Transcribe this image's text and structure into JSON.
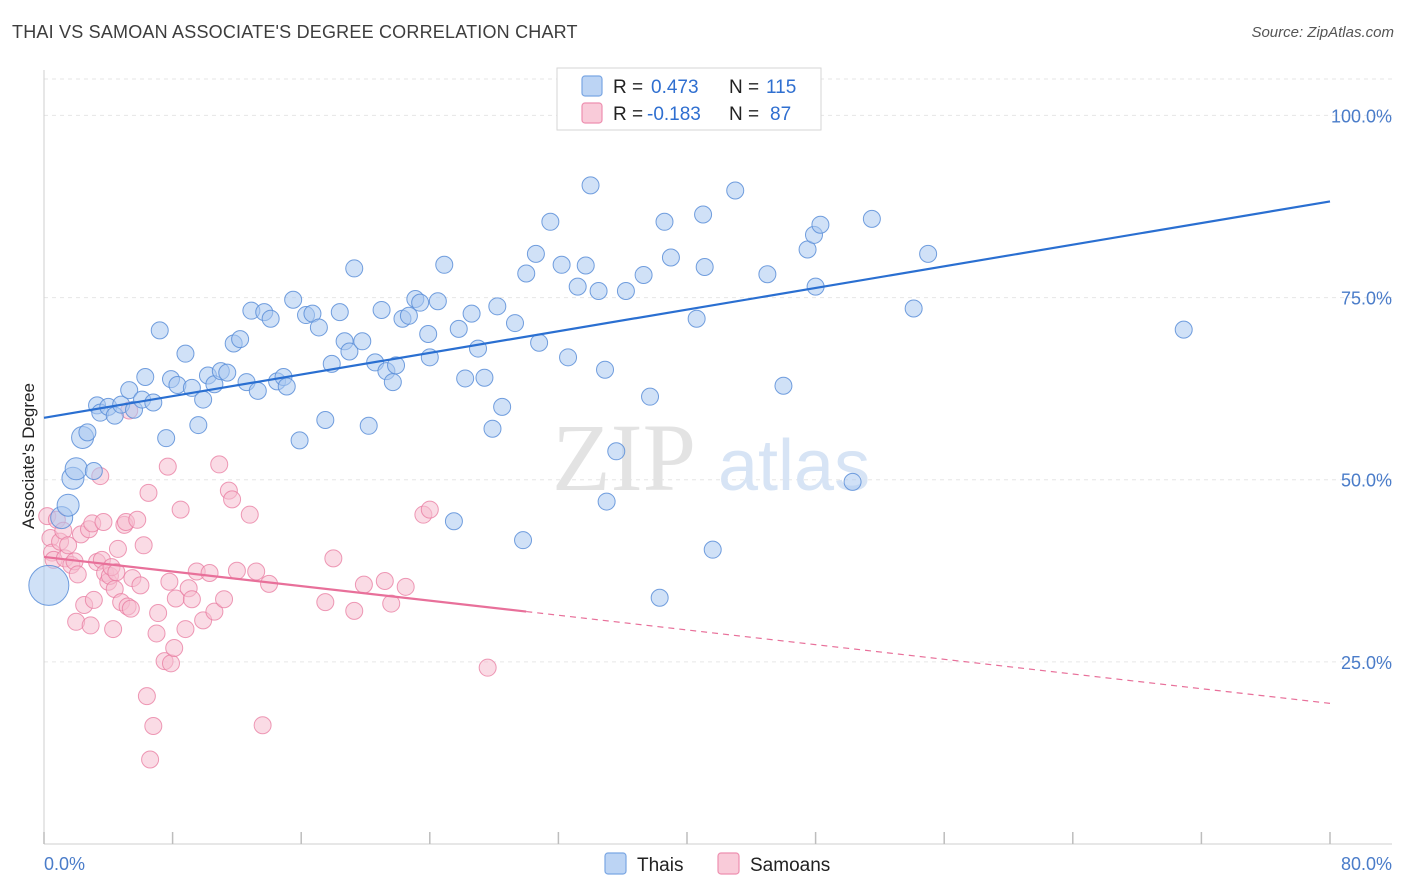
{
  "header": {
    "title": "THAI VS SAMOAN ASSOCIATE'S DEGREE CORRELATION CHART",
    "source": "Source: ZipAtlas.com"
  },
  "watermark": {
    "zip": "ZIP",
    "atlas": "atlas"
  },
  "legend": {
    "rows": [
      {
        "r_label": "R =",
        "r_value": "0.473",
        "n_label": "N =",
        "n_value": "115",
        "color": "#8fb7ec"
      },
      {
        "r_label": "R =",
        "r_value": "-0.183",
        "n_label": "N =",
        "n_value": "87",
        "color": "#f4a8c0"
      }
    ]
  },
  "chart_data": {
    "type": "scatter",
    "ylabel": "Associate's Degree",
    "xlim": [
      0,
      80
    ],
    "ylim": [
      0,
      105
    ],
    "x_tick_labels": [
      "0.0%",
      "80.0%"
    ],
    "y_ticks": [
      25,
      50,
      75,
      100
    ],
    "y_tick_labels": [
      "25.0%",
      "50.0%",
      "75.0%",
      "100.0%"
    ],
    "grid": true,
    "legend_position": "top-center",
    "bottom_legend": [
      "Thais",
      "Samoans"
    ],
    "colors": {
      "thai": "#5b8ed8",
      "thai_fill": "#a9c8f0",
      "samoan": "#e8799f",
      "samoan_fill": "#f6bdd0",
      "thai_line": "#2a6fd1",
      "samoan_line": "#e8709a"
    },
    "series": [
      {
        "name": "Thais",
        "trend": {
          "x0": 0,
          "y0": 58.5,
          "x1": 80,
          "y1": 88.2
        },
        "points": [
          [
            0.3,
            35.5
          ],
          [
            1.1,
            44.8
          ],
          [
            1.5,
            46.5
          ],
          [
            1.8,
            50.2
          ],
          [
            2.0,
            51.5
          ],
          [
            2.4,
            55.8
          ],
          [
            2.7,
            56.5
          ],
          [
            3.1,
            51.2
          ],
          [
            3.3,
            60.2
          ],
          [
            3.5,
            59.2
          ],
          [
            4.0,
            60.0
          ],
          [
            4.4,
            58.8
          ],
          [
            4.8,
            60.3
          ],
          [
            5.3,
            62.3
          ],
          [
            5.6,
            59.6
          ],
          [
            6.1,
            61.0
          ],
          [
            6.3,
            64.1
          ],
          [
            6.8,
            60.6
          ],
          [
            7.2,
            70.5
          ],
          [
            7.6,
            55.7
          ],
          [
            7.9,
            63.8
          ],
          [
            8.3,
            63.0
          ],
          [
            8.8,
            67.3
          ],
          [
            9.2,
            62.6
          ],
          [
            9.6,
            57.5
          ],
          [
            9.9,
            61.0
          ],
          [
            10.2,
            64.3
          ],
          [
            10.6,
            63.1
          ],
          [
            11.0,
            64.9
          ],
          [
            11.4,
            64.7
          ],
          [
            11.8,
            68.7
          ],
          [
            12.2,
            69.3
          ],
          [
            12.6,
            63.4
          ],
          [
            12.9,
            73.2
          ],
          [
            13.3,
            62.2
          ],
          [
            13.7,
            73.0
          ],
          [
            14.1,
            72.1
          ],
          [
            14.5,
            63.5
          ],
          [
            14.9,
            64.1
          ],
          [
            15.1,
            62.8
          ],
          [
            15.5,
            74.7
          ],
          [
            15.9,
            55.4
          ],
          [
            16.3,
            72.6
          ],
          [
            16.7,
            72.8
          ],
          [
            17.1,
            70.9
          ],
          [
            17.5,
            58.2
          ],
          [
            17.9,
            65.9
          ],
          [
            18.4,
            73.0
          ],
          [
            18.7,
            69.0
          ],
          [
            19.0,
            67.6
          ],
          [
            19.3,
            79.0
          ],
          [
            19.8,
            69.0
          ],
          [
            20.2,
            57.4
          ],
          [
            20.6,
            66.1
          ],
          [
            21.0,
            73.3
          ],
          [
            21.3,
            64.9
          ],
          [
            21.7,
            63.4
          ],
          [
            21.9,
            65.7
          ],
          [
            22.3,
            72.1
          ],
          [
            22.7,
            72.5
          ],
          [
            23.1,
            74.8
          ],
          [
            23.4,
            74.3
          ],
          [
            23.9,
            70.0
          ],
          [
            24.0,
            66.8
          ],
          [
            24.5,
            74.5
          ],
          [
            24.9,
            79.5
          ],
          [
            25.5,
            44.3
          ],
          [
            25.8,
            70.7
          ],
          [
            26.2,
            63.9
          ],
          [
            26.6,
            72.8
          ],
          [
            27.0,
            68.0
          ],
          [
            27.4,
            64.0
          ],
          [
            27.9,
            57.0
          ],
          [
            28.2,
            73.8
          ],
          [
            28.5,
            60.0
          ],
          [
            29.3,
            71.5
          ],
          [
            29.8,
            41.7
          ],
          [
            30.0,
            78.3
          ],
          [
            30.6,
            81.0
          ],
          [
            30.8,
            68.8
          ],
          [
            31.5,
            85.4
          ],
          [
            32.2,
            79.5
          ],
          [
            32.6,
            66.8
          ],
          [
            33.2,
            76.5
          ],
          [
            33.7,
            79.4
          ],
          [
            34.0,
            90.4
          ],
          [
            34.5,
            75.9
          ],
          [
            34.9,
            65.1
          ],
          [
            35.0,
            47.0
          ],
          [
            35.6,
            53.9
          ],
          [
            36.2,
            75.9
          ],
          [
            37.3,
            78.1
          ],
          [
            37.7,
            61.4
          ],
          [
            38.3,
            33.8
          ],
          [
            38.6,
            85.4
          ],
          [
            39.0,
            80.5
          ],
          [
            40.6,
            72.1
          ],
          [
            41.0,
            86.4
          ],
          [
            41.1,
            79.2
          ],
          [
            41.6,
            40.4
          ],
          [
            43.0,
            89.7
          ],
          [
            45.0,
            78.2
          ],
          [
            46.0,
            62.9
          ],
          [
            47.5,
            81.6
          ],
          [
            47.9,
            83.6
          ],
          [
            48.0,
            76.5
          ],
          [
            48.3,
            85.0
          ],
          [
            50.3,
            49.7
          ],
          [
            51.5,
            85.8
          ],
          [
            54.1,
            73.5
          ],
          [
            55.0,
            81.0
          ],
          [
            70.9,
            70.6
          ]
        ]
      },
      {
        "name": "Samoans",
        "trend": {
          "x0": 0,
          "y0": 39.4,
          "x1": 30,
          "y1": 31.9
        },
        "trend_dashed": {
          "x0": 30,
          "y0": 31.9,
          "x1": 80,
          "y1": 19.3
        },
        "points": [
          [
            0.2,
            45.0
          ],
          [
            0.4,
            42.0
          ],
          [
            0.5,
            40.0
          ],
          [
            0.6,
            39.0
          ],
          [
            0.8,
            44.5
          ],
          [
            1.0,
            41.5
          ],
          [
            1.2,
            43.0
          ],
          [
            1.3,
            39.2
          ],
          [
            1.5,
            41.0
          ],
          [
            1.7,
            38.3
          ],
          [
            1.9,
            38.8
          ],
          [
            2.1,
            37.0
          ],
          [
            2.3,
            42.5
          ],
          [
            2.5,
            32.8
          ],
          [
            2.0,
            30.5
          ],
          [
            2.8,
            43.2
          ],
          [
            2.9,
            30.0
          ],
          [
            3.0,
            44.0
          ],
          [
            3.1,
            33.5
          ],
          [
            3.3,
            38.7
          ],
          [
            3.5,
            50.5
          ],
          [
            3.6,
            39.0
          ],
          [
            3.7,
            44.2
          ],
          [
            3.8,
            37.2
          ],
          [
            4.0,
            36.0
          ],
          [
            4.1,
            36.8
          ],
          [
            4.2,
            38.0
          ],
          [
            4.3,
            29.5
          ],
          [
            4.4,
            35.0
          ],
          [
            4.5,
            37.3
          ],
          [
            4.6,
            40.5
          ],
          [
            4.8,
            33.2
          ],
          [
            5.0,
            43.8
          ],
          [
            5.1,
            44.2
          ],
          [
            5.2,
            32.6
          ],
          [
            5.3,
            59.5
          ],
          [
            5.4,
            32.3
          ],
          [
            5.5,
            36.5
          ],
          [
            5.8,
            44.5
          ],
          [
            6.0,
            35.5
          ],
          [
            6.2,
            41.0
          ],
          [
            6.4,
            20.3
          ],
          [
            6.5,
            48.2
          ],
          [
            6.6,
            11.6
          ],
          [
            6.8,
            16.2
          ],
          [
            7.0,
            28.9
          ],
          [
            7.1,
            31.7
          ],
          [
            7.5,
            25.1
          ],
          [
            7.7,
            51.8
          ],
          [
            7.8,
            36.0
          ],
          [
            7.9,
            24.8
          ],
          [
            8.1,
            26.9
          ],
          [
            8.2,
            33.7
          ],
          [
            8.5,
            45.9
          ],
          [
            8.8,
            29.5
          ],
          [
            9.0,
            35.1
          ],
          [
            9.2,
            33.6
          ],
          [
            9.5,
            37.4
          ],
          [
            9.9,
            30.7
          ],
          [
            10.3,
            37.2
          ],
          [
            10.6,
            31.9
          ],
          [
            10.9,
            52.1
          ],
          [
            11.2,
            33.6
          ],
          [
            11.5,
            48.5
          ],
          [
            11.7,
            47.3
          ],
          [
            12.0,
            37.5
          ],
          [
            12.8,
            45.2
          ],
          [
            13.2,
            37.4
          ],
          [
            13.6,
            16.3
          ],
          [
            14.0,
            35.7
          ],
          [
            17.5,
            33.2
          ],
          [
            18.0,
            39.2
          ],
          [
            19.3,
            32.0
          ],
          [
            19.9,
            35.6
          ],
          [
            21.2,
            36.1
          ],
          [
            21.6,
            33.0
          ],
          [
            22.5,
            35.3
          ],
          [
            23.6,
            45.2
          ],
          [
            24.0,
            45.9
          ],
          [
            27.6,
            24.2
          ]
        ]
      }
    ]
  }
}
